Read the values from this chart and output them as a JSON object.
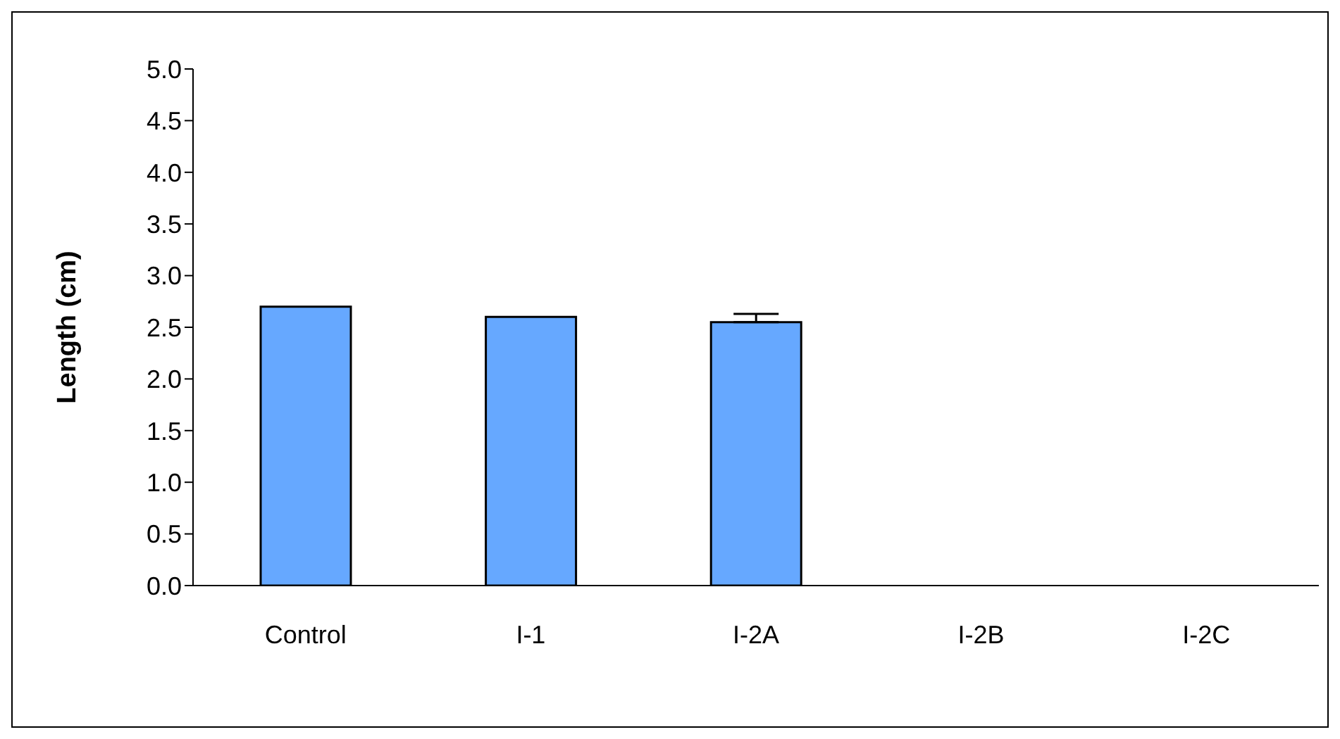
{
  "chart_data": {
    "type": "bar",
    "ylabel": "Length (cm)",
    "categories": [
      "Control",
      "I-1",
      "I-2A",
      "I-2B",
      "I-2C"
    ],
    "values": [
      2.7,
      2.6,
      2.55,
      null,
      null
    ],
    "errors": [
      null,
      null,
      [
        2.55,
        2.63
      ],
      null,
      null
    ],
    "color": "#66a8ff",
    "ylim": [
      0,
      5
    ],
    "yticks": [
      {
        "value": 0,
        "label": "0.0"
      },
      {
        "value": 0.5,
        "label": "0.5"
      },
      {
        "value": 1,
        "label": "1.0"
      },
      {
        "value": 1.5,
        "label": "1.5"
      },
      {
        "value": 2,
        "label": "2.0"
      },
      {
        "value": 2.5,
        "label": "2.5"
      },
      {
        "value": 3,
        "label": "3.0"
      },
      {
        "value": 3.5,
        "label": "3.5"
      },
      {
        "value": 4,
        "label": "4.0"
      },
      {
        "value": 4.5,
        "label": "4.5"
      },
      {
        "value": 5,
        "label": "5.0"
      }
    ],
    "grid": false,
    "legend": false
  }
}
